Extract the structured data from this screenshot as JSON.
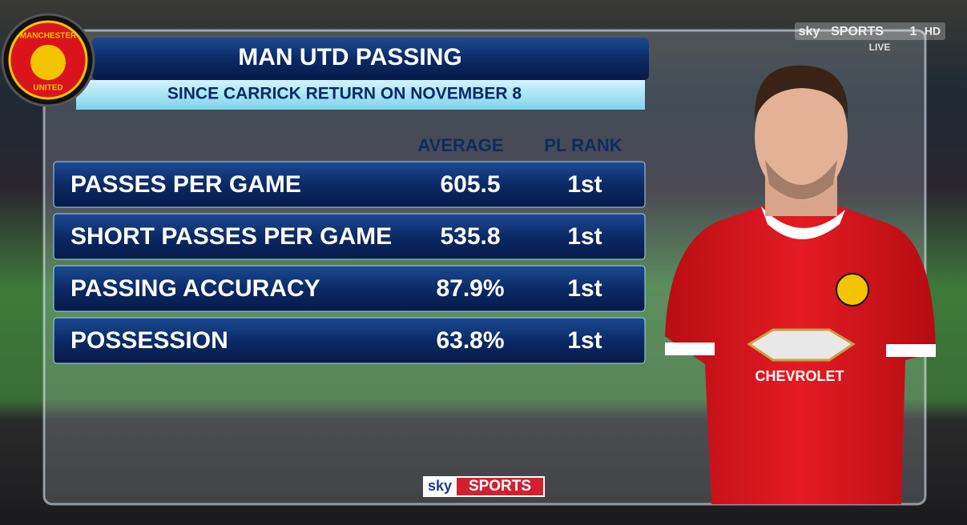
{
  "header": {
    "title": "MAN UTD PASSING",
    "subtitle": "SINCE CARRICK RETURN ON NOVEMBER 8"
  },
  "badge": {
    "top": "MANCHESTER",
    "bottom": "UNITED"
  },
  "table": {
    "columns": [
      "AVERAGE",
      "PL RANK"
    ],
    "rows": [
      [
        "PASSES PER GAME",
        "605.5",
        "1st"
      ],
      [
        "SHORT PASSES PER GAME",
        "535.8",
        "1st"
      ],
      [
        "PASSING ACCURACY",
        "87.9%",
        "1st"
      ],
      [
        "POSSESSION",
        "63.8%",
        "1st"
      ]
    ]
  },
  "channel": {
    "brand": "sky",
    "name": "SPORTS",
    "number": "1",
    "quality": "HD",
    "status": "LIVE"
  },
  "footer": {
    "brand": "sky",
    "name": "SPORTS"
  },
  "shirt": {
    "sponsor": "CHEVROLET"
  }
}
